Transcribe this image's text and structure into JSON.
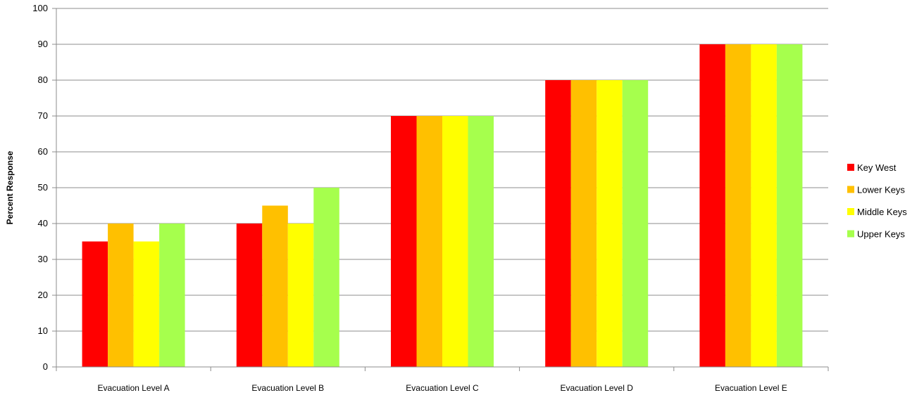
{
  "chart_data": {
    "type": "bar",
    "ylabel": "Percent Response",
    "xlabel": "",
    "ylim": [
      0,
      100
    ],
    "yticks": [
      0,
      10,
      20,
      30,
      40,
      50,
      60,
      70,
      80,
      90,
      100
    ],
    "grid": true,
    "legend_position": "right",
    "categories": [
      "Evacuation Level A",
      "Evacuation Level B",
      "Evacuation Level C",
      "Evacuation Level D",
      "Evacuation Level E"
    ],
    "series": [
      {
        "name": "Key West",
        "color": "#ff0000",
        "values": [
          35,
          40,
          70,
          80,
          90
        ]
      },
      {
        "name": "Lower Keys",
        "color": "#ffc000",
        "values": [
          40,
          45,
          70,
          80,
          90
        ]
      },
      {
        "name": "Middle Keys",
        "color": "#ffff00",
        "values": [
          35,
          40,
          70,
          80,
          90
        ]
      },
      {
        "name": "Upper Keys",
        "color": "#a6ff4d",
        "values": [
          40,
          50,
          70,
          80,
          90
        ]
      }
    ]
  }
}
